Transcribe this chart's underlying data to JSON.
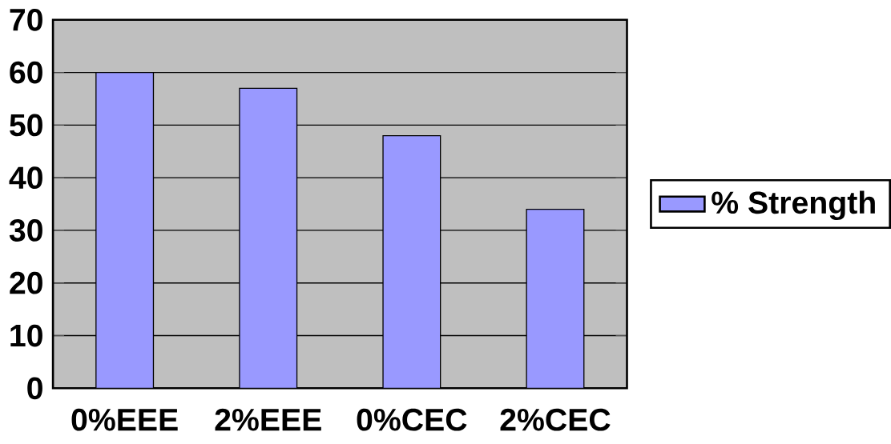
{
  "chart_data": {
    "type": "bar",
    "categories": [
      "0%EEE",
      "2%EEE",
      "0%CEC",
      "2%CEC"
    ],
    "series": [
      {
        "name": "% Strength",
        "color": "#9999ff",
        "values": [
          60,
          57,
          48,
          34
        ]
      }
    ],
    "ylim": [
      0,
      70
    ],
    "yticks": [
      0,
      10,
      20,
      30,
      40,
      50,
      60,
      70
    ],
    "grid": "y",
    "legend": "right"
  }
}
